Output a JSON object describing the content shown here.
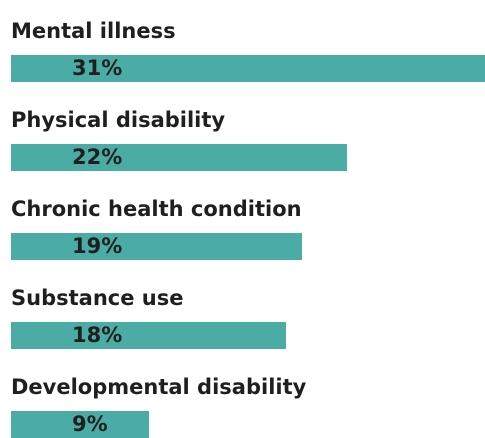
{
  "chart_data": {
    "type": "bar",
    "orientation": "horizontal",
    "categories": [
      "Mental illness",
      "Physical disability",
      "Chronic health condition",
      "Substance use",
      "Developmental disability"
    ],
    "values": [
      31,
      22,
      19,
      18,
      9
    ],
    "value_labels": [
      "31%",
      "22%",
      "19%",
      "18%",
      "9%"
    ],
    "unit": "%",
    "xlim": [
      0,
      31
    ],
    "grid": false,
    "legend": "none",
    "bar_color": "#4aaca5"
  }
}
